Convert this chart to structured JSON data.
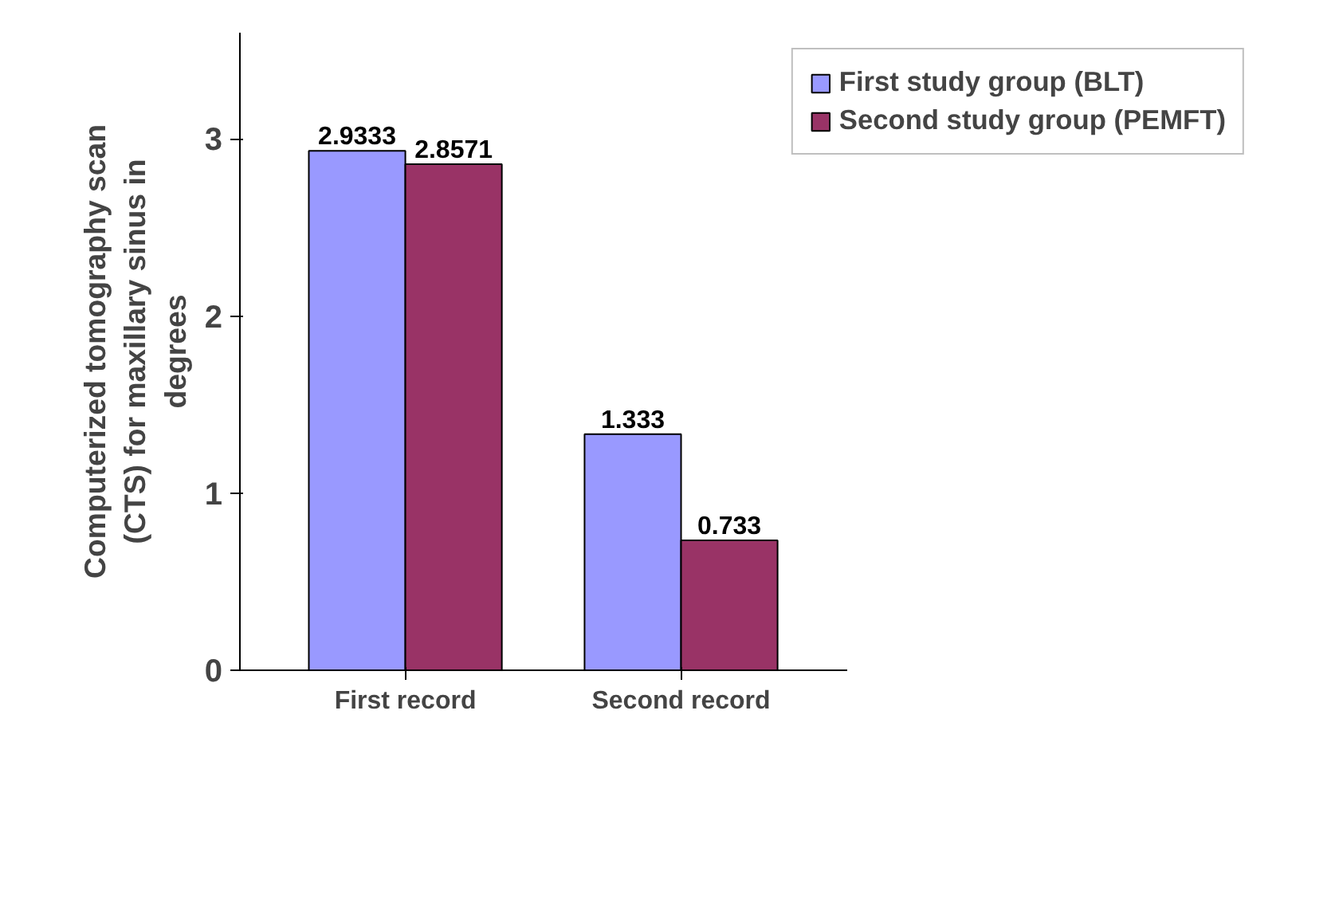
{
  "chart_data": {
    "type": "bar",
    "ylabel": "Computerized tomography scan (CTS) for maxillary sinus in degrees",
    "categories": [
      "First record",
      "Second record"
    ],
    "series": [
      {
        "name": "First study group (BLT)",
        "color": "#9999ff",
        "values": [
          2.9333,
          1.333
        ]
      },
      {
        "name": "Second study group (PEMFT)",
        "color": "#993366",
        "values": [
          2.8571,
          0.733
        ]
      }
    ],
    "ylim": [
      0,
      3.6
    ],
    "yticks": [
      0,
      1,
      2,
      3
    ],
    "data_labels": true,
    "grid": false,
    "legend": "top right"
  }
}
